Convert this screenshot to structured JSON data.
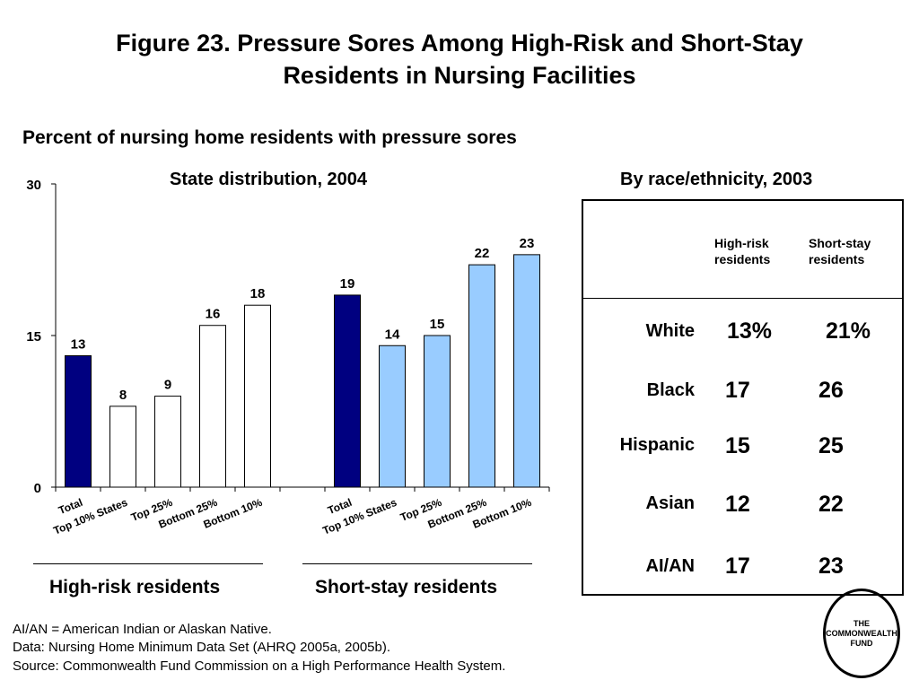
{
  "title_line1": "Figure 23. Pressure Sores Among High-Risk and Short-Stay",
  "title_line2": "Residents in Nursing Facilities",
  "subtitle": "Percent of nursing home residents with pressure sores",
  "chart_data": {
    "type": "bar",
    "title": "State distribution, 2004",
    "ylim": [
      0,
      30
    ],
    "yticks": [
      0,
      15,
      30
    ],
    "groups": [
      {
        "name": "High-risk residents",
        "categories": [
          "Total",
          "Top 10% States",
          "Top 25%",
          "Bottom 25%",
          "Bottom 10%"
        ],
        "values": [
          13,
          8,
          9,
          16,
          18
        ],
        "colors": [
          "#000080",
          "#ffffff",
          "#ffffff",
          "#ffffff",
          "#ffffff"
        ]
      },
      {
        "name": "Short-stay residents",
        "categories": [
          "Total",
          "Top 10% States",
          "Top 25%",
          "Bottom 25%",
          "Bottom 10%"
        ],
        "values": [
          19,
          14,
          15,
          22,
          23
        ],
        "colors": [
          "#000080",
          "#99ccff",
          "#99ccff",
          "#99ccff",
          "#99ccff"
        ]
      }
    ]
  },
  "table": {
    "title": "By race/ethnicity, 2003",
    "col1_line1": "High-risk",
    "col1_line2": "residents",
    "col2_line1": "Short-stay",
    "col2_line2": "residents",
    "rows": [
      {
        "label": "White",
        "high": "13%",
        "short": "21%"
      },
      {
        "label": "Black",
        "high": "17",
        "short": "26"
      },
      {
        "label": "Hispanic",
        "high": "15",
        "short": "25"
      },
      {
        "label": "Asian",
        "high": "12",
        "short": "22"
      },
      {
        "label": "AI/AN",
        "high": "17",
        "short": "23"
      }
    ]
  },
  "footnotes": [
    "AI/AN = American Indian or Alaskan Native.",
    "Data: Nursing Home Minimum Data Set (AHRQ 2005a, 2005b).",
    "Source: Commonwealth Fund Commission on a High Performance Health System."
  ],
  "logo": {
    "line1": "THE",
    "line2": "COMMONWEALTH",
    "line3": "FUND"
  }
}
